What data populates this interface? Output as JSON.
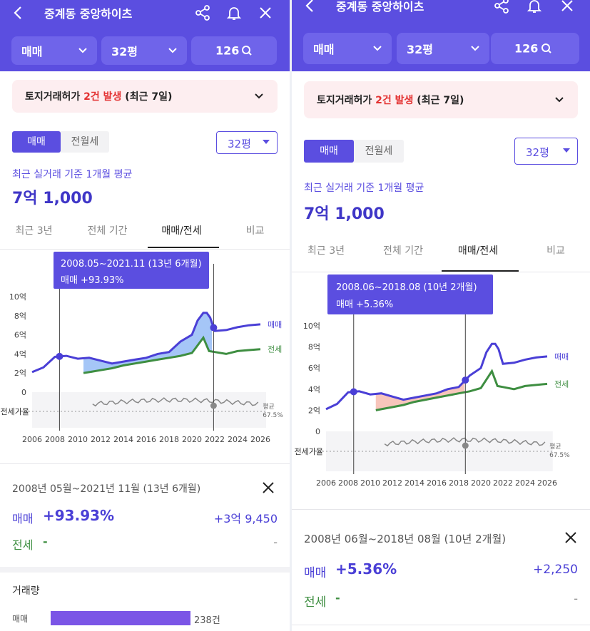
{
  "header": {
    "title": "중계동 중앙하이츠"
  },
  "filters": {
    "trade_type": "매매",
    "size": "32평",
    "count": "126"
  },
  "alert": {
    "prefix": "토지거래허가 ",
    "highlight": "2건 발생",
    "suffix": " (최근 7일)"
  },
  "toggle": {
    "sale": "매매",
    "rent": "전월세"
  },
  "size_select": "32평",
  "average": {
    "label": "최근 실거래 기준 1개월 평균",
    "price": "7억 1,000"
  },
  "tabs": [
    "최근 3년",
    "전체 기간",
    "매매/전세",
    "비교"
  ],
  "colors": {
    "sale": "#4a3fd6",
    "jeonse": "#3e8e41",
    "rise_fill": "#8fb8f5",
    "small_rise_fill": "#f5b7aa",
    "ratio": "#888888",
    "accent": "#5b4ee0"
  },
  "chart_data": {
    "type": "line",
    "xlim": [
      2006,
      2026.5
    ],
    "x_ticks": [
      "2006",
      "2008",
      "2010",
      "2012",
      "2014",
      "2016",
      "2018",
      "2020",
      "2022",
      "2024",
      "2026"
    ],
    "y_ticks": [
      "0",
      "2억",
      "4억",
      "6억",
      "8억",
      "10억"
    ],
    "ylim": [
      0,
      10
    ],
    "series": [
      {
        "name": "매매",
        "points": [
          [
            2006,
            2.1
          ],
          [
            2007,
            2.6
          ],
          [
            2008,
            3.7
          ],
          [
            2009,
            3.8
          ],
          [
            2010,
            3.5
          ],
          [
            2011,
            3.6
          ],
          [
            2012,
            3.3
          ],
          [
            2013,
            3.0
          ],
          [
            2014,
            3.2
          ],
          [
            2015,
            3.4
          ],
          [
            2016,
            3.6
          ],
          [
            2017,
            4.0
          ],
          [
            2018,
            4.2
          ],
          [
            2019,
            5.3
          ],
          [
            2020,
            6.0
          ],
          [
            2020.5,
            7.5
          ],
          [
            2021,
            8.3
          ],
          [
            2021.3,
            8.3
          ],
          [
            2021.6,
            7.8
          ],
          [
            2022,
            6.4
          ],
          [
            2023,
            6.5
          ],
          [
            2024,
            6.8
          ],
          [
            2025,
            7.0
          ],
          [
            2026,
            7.1
          ]
        ]
      },
      {
        "name": "전세",
        "points": [
          [
            2010.5,
            2.0
          ],
          [
            2011,
            2.1
          ],
          [
            2012,
            2.3
          ],
          [
            2013,
            2.5
          ],
          [
            2014,
            2.8
          ],
          [
            2015,
            3.0
          ],
          [
            2016,
            3.2
          ],
          [
            2017,
            3.4
          ],
          [
            2018,
            3.6
          ],
          [
            2019,
            3.8
          ],
          [
            2020,
            4.1
          ],
          [
            2021,
            5.7
          ],
          [
            2021.5,
            4.3
          ],
          [
            2022,
            4.2
          ],
          [
            2023,
            4.0
          ],
          [
            2024,
            4.3
          ],
          [
            2025,
            4.4
          ],
          [
            2026,
            4.5
          ]
        ]
      }
    ],
    "ratio_label": "전세가율",
    "ratio_avg_label": "평균",
    "ratio_avg_value": "67.5%"
  },
  "panels": [
    {
      "selection_tooltip": {
        "range": "2008.05~2021.11 (13년 6개월)",
        "change": "매매 +93.93%"
      },
      "range_start": 2008.4,
      "range_end": 2021.9,
      "summary": {
        "range": "2008년 05월~2021년 11월 (13년 6개월)",
        "sale_label": "매매",
        "sale_pct": "+93.93%",
        "sale_amount": "+3억 9,450",
        "jeonse_label": "전세",
        "jeonse_pct": "-",
        "jeonse_amount": "-"
      },
      "volume": {
        "title": "거래량",
        "label": "매매",
        "count": "238건"
      }
    },
    {
      "selection_tooltip": {
        "range": "2008.06~2018.08 (10년 2개월)",
        "change": "매매 +5.36%"
      },
      "range_start": 2008.5,
      "range_end": 2018.6,
      "summary": {
        "range": "2008년 06월~2018년 08월 (10년 2개월)",
        "sale_label": "매매",
        "sale_pct": "+5.36%",
        "sale_amount": "+2,250",
        "jeonse_label": "전세",
        "jeonse_pct": "-",
        "jeonse_amount": "-"
      }
    }
  ]
}
